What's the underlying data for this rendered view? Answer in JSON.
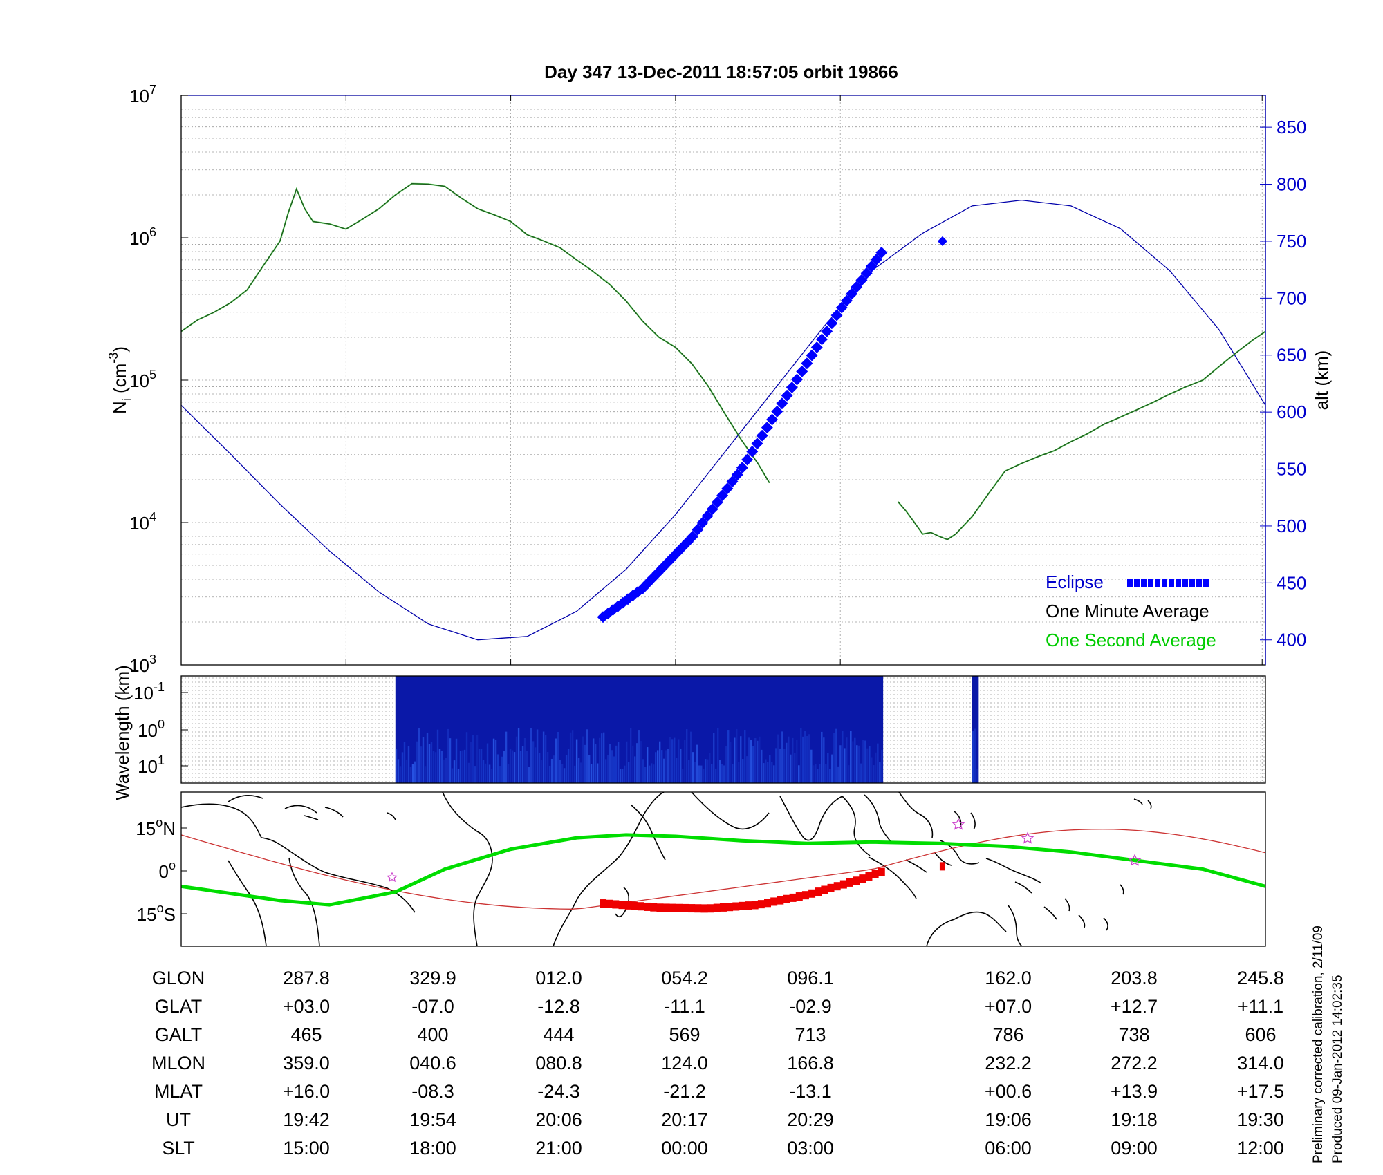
{
  "chart_data": [
    {
      "type": "line",
      "title": "Day 347  13-Dec-2011 18:57:05   orbit 19866",
      "ylabel_left": "N_i (cm^-3)",
      "ylabel_left_main": "N",
      "ylabel_left_sub": "i",
      "ylabel_left_unit_open": " (cm",
      "ylabel_left_unit_exp": "-3",
      "ylabel_left_unit_close": ")",
      "ylabel_right": "alt (km)",
      "yscale_left": "log",
      "ylim_left": [
        1000,
        10000000
      ],
      "yticks_left": [
        {
          "base": "10",
          "exp": "3",
          "value": 1000
        },
        {
          "base": "10",
          "exp": "4",
          "value": 10000
        },
        {
          "base": "10",
          "exp": "5",
          "value": 100000
        },
        {
          "base": "10",
          "exp": "6",
          "value": 1000000
        },
        {
          "base": "10",
          "exp": "7",
          "value": 10000000
        }
      ],
      "ylim_right": [
        378,
        878
      ],
      "yticks_right": [
        "400",
        "450",
        "500",
        "550",
        "600",
        "650",
        "700",
        "750",
        "800",
        "850"
      ],
      "grid": true,
      "legend_position": "bottom-right",
      "legend": {
        "eclipse": "Eclipse",
        "one_minute": "One Minute Average",
        "one_second": "One Second Average"
      },
      "colors": {
        "one_minute": "#000000",
        "one_second": "#00cc00",
        "density_line": "#1d5a1d",
        "altitude": "#0000aa",
        "eclipse": "#0000ff",
        "right_axis": "#0000cc"
      },
      "series": [
        {
          "name": "One Minute Average",
          "segments": [
            [
              [
                0.0,
                220000
              ],
              [
                0.1,
                265000
              ],
              [
                0.2,
                300000
              ],
              [
                0.3,
                350000
              ],
              [
                0.4,
                430000
              ],
              [
                0.5,
                640000
              ],
              [
                0.6,
                950000
              ],
              [
                0.65,
                1500000
              ],
              [
                0.7,
                2200000
              ],
              [
                0.75,
                1600000
              ],
              [
                0.8,
                1300000
              ],
              [
                0.9,
                1250000
              ],
              [
                1.0,
                1150000
              ],
              [
                1.1,
                1350000
              ],
              [
                1.2,
                1600000
              ],
              [
                1.3,
                2000000
              ],
              [
                1.4,
                2400000
              ],
              [
                1.5,
                2380000
              ],
              [
                1.6,
                2300000
              ],
              [
                1.7,
                1900000
              ],
              [
                1.8,
                1600000
              ],
              [
                1.9,
                1450000
              ],
              [
                2.0,
                1300000
              ],
              [
                2.1,
                1050000
              ],
              [
                2.2,
                950000
              ],
              [
                2.3,
                850000
              ],
              [
                2.4,
                700000
              ],
              [
                2.5,
                580000
              ],
              [
                2.6,
                470000
              ],
              [
                2.7,
                360000
              ],
              [
                2.8,
                260000
              ],
              [
                2.9,
                200000
              ],
              [
                3.0,
                170000
              ],
              [
                3.1,
                130000
              ],
              [
                3.2,
                90000
              ],
              [
                3.3,
                58000
              ],
              [
                3.4,
                38000
              ],
              [
                3.5,
                26000
              ],
              [
                3.57,
                19000
              ]
            ],
            [
              [
                4.35,
                14000
              ],
              [
                4.4,
                12000
              ],
              [
                4.45,
                10000
              ],
              [
                4.5,
                8300
              ],
              [
                4.55,
                8500
              ],
              [
                4.6,
                8000
              ],
              [
                4.65,
                7600
              ],
              [
                4.7,
                8300
              ],
              [
                4.8,
                11000
              ],
              [
                4.9,
                16000
              ],
              [
                5.0,
                23000
              ],
              [
                5.1,
                26000
              ],
              [
                5.2,
                29000
              ],
              [
                5.3,
                32000
              ],
              [
                5.4,
                37000
              ],
              [
                5.5,
                42000
              ],
              [
                5.6,
                49000
              ],
              [
                5.7,
                55000
              ],
              [
                5.8,
                62000
              ],
              [
                5.9,
                70000
              ],
              [
                6.0,
                80000
              ],
              [
                6.1,
                90000
              ],
              [
                6.2,
                100000
              ],
              [
                6.3,
                125000
              ],
              [
                6.4,
                155000
              ],
              [
                6.5,
                190000
              ],
              [
                6.58,
                220000
              ]
            ]
          ]
        },
        {
          "name": "One Second Average",
          "note": "visually coincident with the one-minute average"
        },
        {
          "name": "altitude",
          "x": [
            0.0,
            0.3,
            0.6,
            0.9,
            1.2,
            1.5,
            1.8,
            2.1,
            2.4,
            2.7,
            3.0,
            3.3,
            3.6,
            3.9,
            4.2,
            4.5,
            4.8,
            5.1,
            5.4,
            5.7,
            6.0,
            6.3,
            6.58
          ],
          "y": [
            606,
            563,
            519,
            478,
            442,
            414,
            400,
            403,
            425,
            462,
            510,
            565,
            620,
            675,
            725,
            757,
            781,
            786,
            781,
            761,
            724,
            672,
            606
          ]
        },
        {
          "name": "Eclipse",
          "segments": [
            [
              [
                2.56,
                420
              ],
              [
                2.8,
                445
              ],
              [
                3.1,
                490
              ],
              [
                3.4,
                550
              ],
              [
                3.7,
                620
              ],
              [
                4.0,
                690
              ],
              [
                4.25,
                740
              ]
            ],
            [
              [
                4.62,
                750
              ]
            ]
          ]
        }
      ]
    },
    {
      "type": "heatmap",
      "ylabel": "Wavelength (km)",
      "yscale": "log",
      "yticks": [
        {
          "base": "10",
          "exp": "-1"
        },
        {
          "base": "10",
          "exp": "0"
        },
        {
          "base": "10",
          "exp": "1"
        }
      ],
      "data_segments": [
        [
          1.3,
          4.26
        ],
        [
          4.8,
          4.84
        ]
      ],
      "colormap": "dark blue (low) to light blue/cyan (high)"
    },
    {
      "type": "map",
      "ylabel_ticks": [
        "15",
        "0",
        "15"
      ],
      "ylabel_ticks_suffix": [
        "N",
        "",
        "S"
      ],
      "latitude_range": [
        -27,
        27
      ],
      "subsatellite_track_color": "#00dd00",
      "magnetic_equator_color": "#cc3333",
      "eclipse_track_color": "#ee0000",
      "star_marker_color": "#cc44cc"
    },
    {
      "type": "table",
      "rows": [
        {
          "label": "GLON",
          "values": [
            "287.8",
            "329.9",
            "012.0",
            "054.2",
            "096.1",
            "162.0",
            "203.8",
            "245.8"
          ]
        },
        {
          "label": "GLAT",
          "values": [
            "+03.0",
            "-07.0",
            "-12.8",
            "-11.1",
            "-02.9",
            "+07.0",
            "+12.7",
            "+11.1"
          ]
        },
        {
          "label": "GALT",
          "values": [
            "465",
            "400",
            "444",
            "569",
            "713",
            "786",
            "738",
            "606"
          ]
        },
        {
          "label": "MLON",
          "values": [
            "359.0",
            "040.6",
            "080.8",
            "124.0",
            "166.8",
            "232.2",
            "272.2",
            "314.0"
          ]
        },
        {
          "label": "MLAT",
          "values": [
            "+16.0",
            "-08.3",
            "-24.3",
            "-21.2",
            "-13.1",
            "+00.6",
            "+13.9",
            "+17.5"
          ]
        },
        {
          "label": "UT",
          "values": [
            "19:42",
            "19:54",
            "20:06",
            "20:17",
            "20:29",
            "19:06",
            "19:18",
            "19:30"
          ]
        },
        {
          "label": "SLT",
          "values": [
            "15:00",
            "18:00",
            "21:00",
            "00:00",
            "03:00",
            "06:00",
            "09:00",
            "12:00"
          ]
        }
      ],
      "column_x": [
        1,
        2,
        3,
        4,
        5,
        6.56,
        7.56,
        8.56
      ]
    }
  ],
  "footnote": {
    "line1": "Preliminary corrected calibration, 2/11/09",
    "line2": "Produced 09-Jan-2012 14:02:35"
  }
}
